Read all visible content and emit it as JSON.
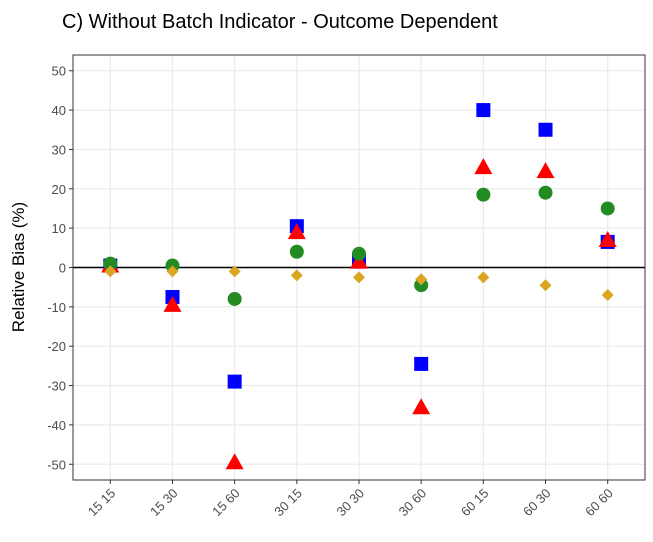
{
  "chart_data": {
    "type": "scatter",
    "title": "C)   Without Batch Indicator - Outcome Dependent",
    "y_label": "Relative Bias (%)",
    "categories": [
      "15 15",
      "15 30",
      "15 60",
      "30 15",
      "30 30",
      "30 60",
      "60 15",
      "60 30",
      "60 60"
    ],
    "series": [
      {
        "color": "#0000ff",
        "shape": "square",
        "values": [
          0.5,
          -7.5,
          -29,
          10.5,
          1.5,
          -24.5,
          40,
          35,
          6.5
        ]
      },
      {
        "color": "#ff0000",
        "shape": "triangle",
        "values": [
          0.5,
          -9.5,
          -49.5,
          9,
          1.5,
          -35.5,
          25.5,
          24.5,
          7
        ]
      },
      {
        "color": "#228b22",
        "shape": "circle",
        "values": [
          1,
          0.5,
          -8,
          4,
          3.5,
          -4.5,
          18.5,
          19,
          15
        ]
      },
      {
        "color": "#daa520",
        "shape": "diamond",
        "values": [
          -1,
          -1,
          -1,
          -2,
          -2.5,
          -3,
          -2.5,
          -4.5,
          -7
        ]
      }
    ],
    "ylim": [
      -54,
      54
    ],
    "yticks": [
      -50,
      -40,
      -30,
      -20,
      -10,
      0,
      10,
      20,
      30,
      40,
      50
    ],
    "grid": true
  }
}
